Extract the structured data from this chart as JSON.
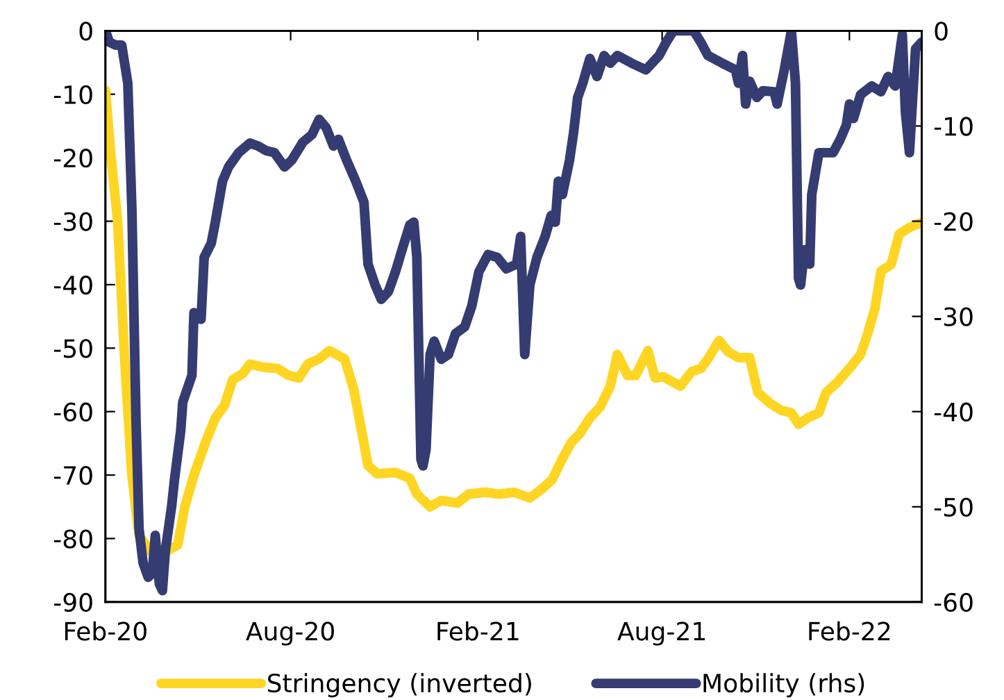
{
  "chart_data": {
    "type": "line",
    "xlim": [
      "2020-02-01",
      "2022-04-13"
    ],
    "xticks": [
      {
        "value": "2020-02-01",
        "label": "Feb-20"
      },
      {
        "value": "2020-08-01",
        "label": "Aug-20"
      },
      {
        "value": "2021-02-01",
        "label": "Feb-21"
      },
      {
        "value": "2021-08-01",
        "label": "Aug-21"
      },
      {
        "value": "2022-02-01",
        "label": "Feb-22"
      }
    ],
    "ylim": [
      -90,
      0
    ],
    "yticks": [
      -90,
      -80,
      -70,
      -60,
      -50,
      -40,
      -30,
      -20,
      -10,
      0
    ],
    "y2lim": [
      -60,
      0
    ],
    "y2ticks": [
      -60,
      -50,
      -40,
      -30,
      -20,
      -10,
      0
    ],
    "grid": false,
    "legend": "bottom",
    "marker": "none",
    "line_style": "solid",
    "series": [
      {
        "name": "Stringency (inverted)",
        "color": "#ffd524",
        "x": [
          "2020-02-01",
          "2020-02-06",
          "2020-02-13",
          "2020-02-20",
          "2020-02-27",
          "2020-03-05",
          "2020-03-16",
          "2020-04-01",
          "2020-04-12",
          "2020-04-19",
          "2020-04-28",
          "2020-05-09",
          "2020-05-19",
          "2020-05-28",
          "2020-06-05",
          "2020-06-15",
          "2020-06-22",
          "2020-07-05",
          "2020-07-19",
          "2020-07-30",
          "2020-08-09",
          "2020-08-18",
          "2020-08-29",
          "2020-09-08",
          "2020-09-23",
          "2020-10-02",
          "2020-10-12",
          "2020-10-16",
          "2020-10-25",
          "2020-11-12",
          "2020-11-26",
          "2020-12-03",
          "2020-12-16",
          "2020-12-27",
          "2021-01-12",
          "2021-01-23",
          "2021-02-09",
          "2021-02-22",
          "2021-03-08",
          "2021-03-24",
          "2021-04-04",
          "2021-04-15",
          "2021-04-25",
          "2021-05-04",
          "2021-05-12",
          "2021-05-22",
          "2021-06-01",
          "2021-06-11",
          "2021-06-18",
          "2021-06-28",
          "2021-07-06",
          "2021-07-18",
          "2021-07-25",
          "2021-08-02",
          "2021-08-19",
          "2021-08-30",
          "2021-09-08",
          "2021-09-15",
          "2021-09-26",
          "2021-10-05",
          "2021-10-15",
          "2021-10-26",
          "2021-11-03",
          "2021-11-15",
          "2021-11-26",
          "2021-12-06",
          "2021-12-13",
          "2021-12-22",
          "2022-01-02",
          "2022-01-09",
          "2022-01-20",
          "2022-02-01",
          "2022-02-12",
          "2022-02-19",
          "2022-02-26",
          "2022-03-04",
          "2022-03-14",
          "2022-03-22",
          "2022-04-01",
          "2022-04-13"
        ],
        "values": [
          -9.4,
          -19,
          -30,
          -52,
          -70,
          -79.5,
          -82,
          -82,
          -81,
          -75,
          -70,
          -65,
          -61,
          -59,
          -55,
          -54,
          -52.5,
          -53,
          -53.2,
          -54.3,
          -54.7,
          -52.5,
          -51.7,
          -50.4,
          -51.7,
          -56.5,
          -65,
          -68.5,
          -69.8,
          -69.6,
          -70.5,
          -73,
          -75,
          -74,
          -74.4,
          -73,
          -72.7,
          -73,
          -72.7,
          -73.6,
          -72.3,
          -70.7,
          -67.4,
          -64.8,
          -63.5,
          -61,
          -59.3,
          -56,
          -51,
          -54.3,
          -54.3,
          -50.4,
          -54.7,
          -54.5,
          -56,
          -53.7,
          -53.2,
          -51.7,
          -48.8,
          -50.6,
          -51.5,
          -51.5,
          -57,
          -58.7,
          -59.8,
          -60.2,
          -62,
          -61,
          -60.2,
          -57,
          -55.4,
          -53.2,
          -51,
          -47.7,
          -43.8,
          -37.9,
          -36.8,
          -32,
          -31,
          -30.2
        ]
      },
      {
        "name": "Mobility (rhs)",
        "color": "#353c72",
        "axis": "y2",
        "x": [
          "2020-02-01",
          "2020-02-05",
          "2020-02-11",
          "2020-02-17",
          "2020-02-23",
          "2020-02-27",
          "2020-03-02",
          "2020-03-05",
          "2020-03-09",
          "2020-03-14",
          "2020-03-18",
          "2020-03-21",
          "2020-03-25",
          "2020-03-28",
          "2020-03-31",
          "2020-04-04",
          "2020-04-06",
          "2020-04-09",
          "2020-04-15",
          "2020-04-17",
          "2020-04-26",
          "2020-04-28",
          "2020-05-05",
          "2020-05-08",
          "2020-05-15",
          "2020-05-19",
          "2020-05-26",
          "2020-06-01",
          "2020-06-11",
          "2020-06-22",
          "2020-06-30",
          "2020-07-08",
          "2020-07-16",
          "2020-07-26",
          "2020-08-02",
          "2020-08-13",
          "2020-08-22",
          "2020-08-29",
          "2020-09-05",
          "2020-09-12",
          "2020-09-17",
          "2020-09-25",
          "2020-10-04",
          "2020-10-12",
          "2020-10-16",
          "2020-10-23",
          "2020-10-29",
          "2020-11-05",
          "2020-11-12",
          "2020-11-19",
          "2020-11-26",
          "2020-11-30",
          "2020-12-03",
          "2020-12-07",
          "2020-12-09",
          "2020-12-12",
          "2020-12-16",
          "2020-12-20",
          "2020-12-27",
          "2021-01-03",
          "2021-01-10",
          "2021-01-19",
          "2021-01-26",
          "2021-02-02",
          "2021-02-11",
          "2021-02-20",
          "2021-03-01",
          "2021-03-11",
          "2021-03-15",
          "2021-03-19",
          "2021-03-24",
          "2021-03-31",
          "2021-04-08",
          "2021-04-14",
          "2021-04-18",
          "2021-04-21",
          "2021-04-25",
          "2021-05-02",
          "2021-05-06",
          "2021-05-10",
          "2021-05-15",
          "2021-05-22",
          "2021-05-29",
          "2021-06-05",
          "2021-06-11",
          "2021-06-18",
          "2021-07-02",
          "2021-07-16",
          "2021-07-29",
          "2021-08-05",
          "2021-08-12",
          "2021-09-01",
          "2021-09-08",
          "2021-09-15",
          "2021-09-29",
          "2021-10-12",
          "2021-10-15",
          "2021-10-19",
          "2021-10-22",
          "2021-10-26",
          "2021-11-02",
          "2021-11-08",
          "2021-11-19",
          "2021-11-22",
          "2021-11-29",
          "2021-12-06",
          "2021-12-10",
          "2021-12-13",
          "2021-12-15",
          "2021-12-19",
          "2021-12-24",
          "2021-12-26",
          "2022-01-02",
          "2022-01-16",
          "2022-01-23",
          "2022-01-29",
          "2022-02-01",
          "2022-02-05",
          "2022-02-12",
          "2022-02-23",
          "2022-03-04",
          "2022-03-11",
          "2022-03-18",
          "2022-03-25",
          "2022-03-28",
          "2022-04-01",
          "2022-04-05",
          "2022-04-07",
          "2022-04-13"
        ],
        "values": [
          0,
          -1.2,
          -1.5,
          -1.5,
          -5.5,
          -18.7,
          -40.6,
          -52.3,
          -55.9,
          -57.4,
          -57,
          -53,
          -58.1,
          -58.8,
          -54.5,
          -51.5,
          -50,
          -47,
          -42,
          -39,
          -36.2,
          -29.6,
          -30.3,
          -23.8,
          -22.3,
          -20.1,
          -15.8,
          -14.3,
          -12.8,
          -11.8,
          -12.1,
          -12.6,
          -12.8,
          -14.3,
          -13.6,
          -11.7,
          -10.9,
          -9.3,
          -10.2,
          -12.1,
          -11.4,
          -13.6,
          -15.8,
          -18,
          -24.5,
          -26.7,
          -28.2,
          -27.4,
          -25.3,
          -22.8,
          -20.4,
          -20.1,
          -23.8,
          -45,
          -45.7,
          -44,
          -34,
          -32.6,
          -34.5,
          -34,
          -31.8,
          -31.1,
          -28.9,
          -25.3,
          -23.5,
          -23.8,
          -25,
          -24.5,
          -21.6,
          -34,
          -26.7,
          -23.8,
          -21.6,
          -19.4,
          -20.1,
          -15.8,
          -17.2,
          -13.6,
          -10.7,
          -7,
          -5.5,
          -2.9,
          -4.8,
          -2.6,
          -3.4,
          -2.6,
          -3.4,
          -4.1,
          -2.6,
          -1.2,
          0,
          0,
          -1.2,
          -2.6,
          -3.4,
          -4.1,
          -5.5,
          -2.6,
          -7.7,
          -5.3,
          -7,
          -6.3,
          -6.4,
          -7.7,
          -4.1,
          0,
          -5.5,
          -26,
          -26.7,
          -23,
          -24.5,
          -17.2,
          -12.8,
          -12.8,
          -11.4,
          -9.9,
          -7.7,
          -9.2,
          -6.7,
          -5.8,
          -6.4,
          -4.8,
          -5.8,
          -0.4,
          -8.5,
          -12.8,
          -5.5,
          -1.9,
          -1.2
        ]
      }
    ]
  }
}
